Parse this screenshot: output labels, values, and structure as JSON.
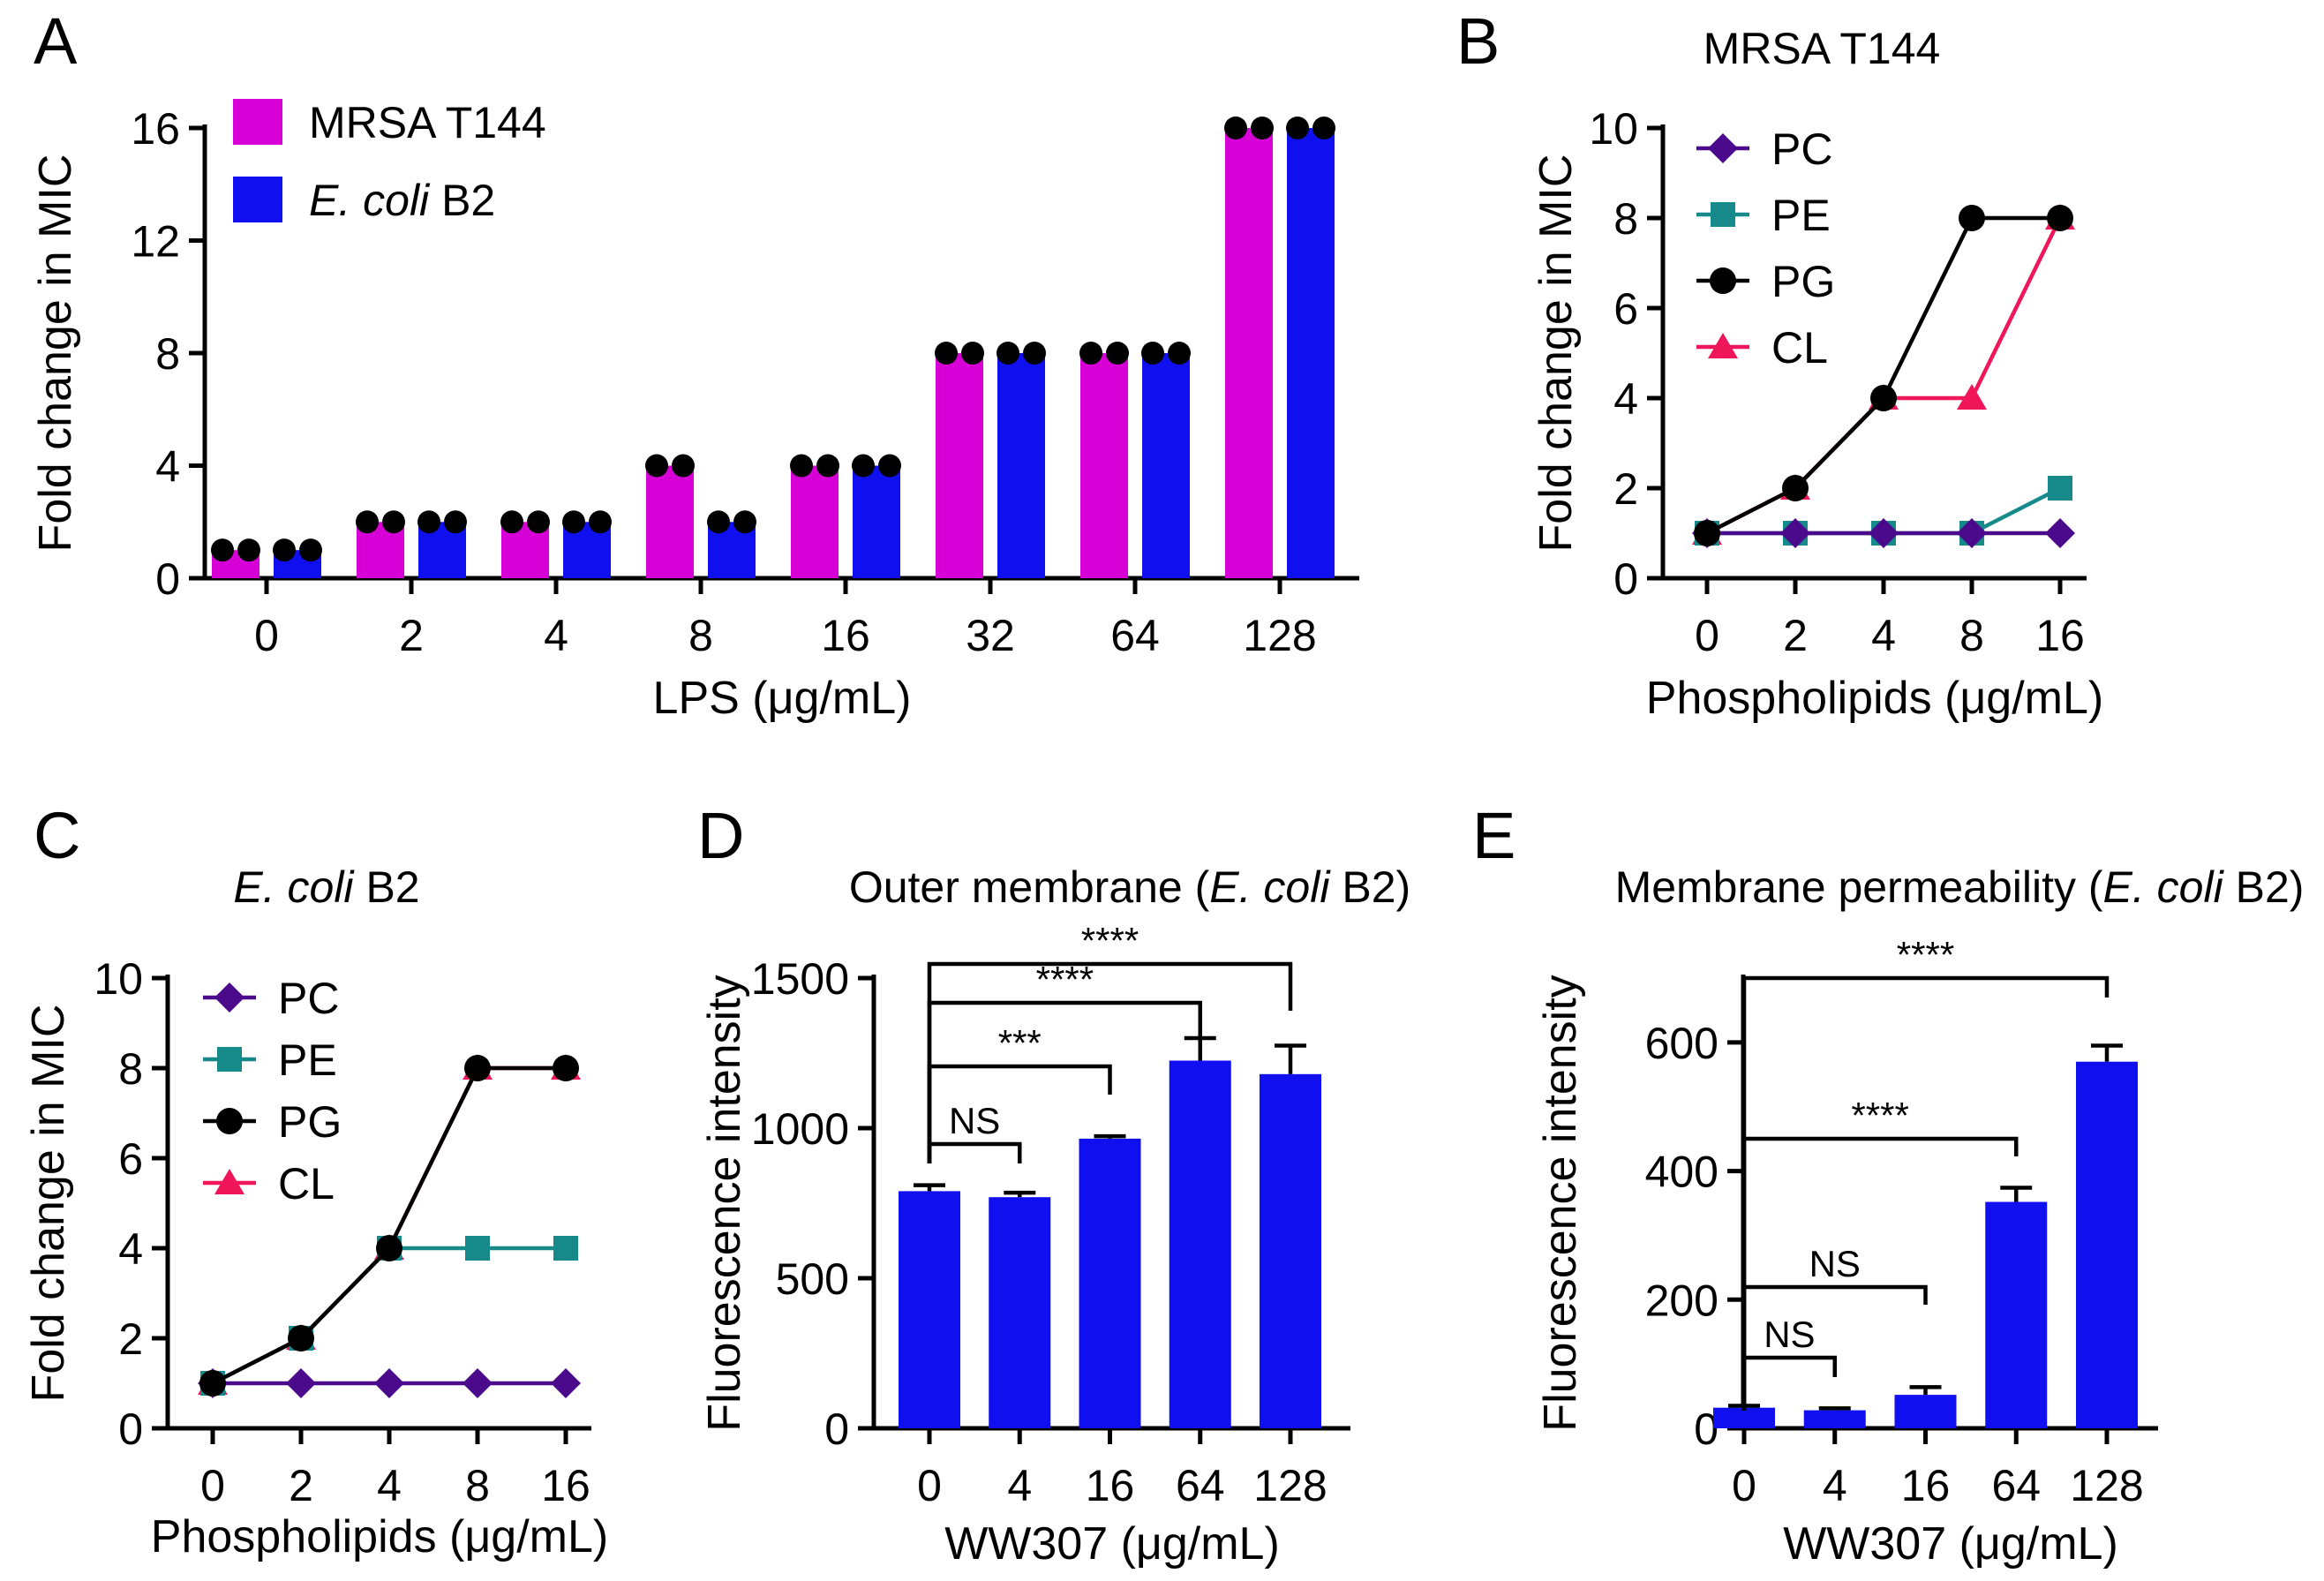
{
  "chart_data": [
    {
      "panel": "A",
      "type": "bar",
      "title": "",
      "xlabel": "LPS (μg/mL)",
      "ylabel": "Fold change in MIC",
      "categories": [
        "0",
        "2",
        "4",
        "8",
        "16",
        "32",
        "64",
        "128"
      ],
      "ylim": [
        0,
        16
      ],
      "yticks": [
        "0",
        "4",
        "8",
        "12",
        "16"
      ],
      "series": [
        {
          "name": "MRSA T144",
          "color": "#d600d6",
          "values": [
            1,
            2,
            2,
            4,
            4,
            8,
            8,
            16
          ]
        },
        {
          "name": "E. coli B2",
          "name_italic": "E. coli",
          "name_rest": " B2",
          "color": "#0f0fef",
          "values": [
            1,
            2,
            2,
            2,
            4,
            8,
            8,
            16
          ]
        }
      ],
      "replicates_per_bar": 2,
      "legend": "top-left"
    },
    {
      "panel": "B",
      "type": "line",
      "title": "MRSA T144",
      "xlabel": "Phospholipids (μg/mL)",
      "ylabel": "Fold change in MIC",
      "categories": [
        "0",
        "2",
        "4",
        "8",
        "16"
      ],
      "ylim": [
        0,
        10
      ],
      "yticks": [
        "0",
        "2",
        "4",
        "6",
        "8",
        "10"
      ],
      "series": [
        {
          "name": "PC",
          "marker": "diamond",
          "color": "#4b0a8c",
          "values": [
            1,
            1,
            1,
            1,
            1
          ]
        },
        {
          "name": "PE",
          "marker": "square",
          "color": "#16898a",
          "values": [
            1,
            1,
            1,
            1,
            2
          ]
        },
        {
          "name": "PG",
          "marker": "circle",
          "color": "#000000",
          "values": [
            1,
            2,
            4,
            8,
            8
          ]
        },
        {
          "name": "CL",
          "marker": "triangle",
          "color": "#f0165a",
          "values": [
            1,
            2,
            4,
            4,
            8
          ]
        }
      ],
      "legend": "top-left"
    },
    {
      "panel": "C",
      "type": "line",
      "title": "E. coli B2",
      "title_italic": "E. coli",
      "title_rest": " B2",
      "xlabel": "Phospholipids (μg/mL)",
      "ylabel": "Fold change in MIC",
      "categories": [
        "0",
        "2",
        "4",
        "8",
        "16"
      ],
      "ylim": [
        0,
        10
      ],
      "yticks": [
        "0",
        "2",
        "4",
        "6",
        "8",
        "10"
      ],
      "series": [
        {
          "name": "PC",
          "marker": "diamond",
          "color": "#4b0a8c",
          "values": [
            1,
            1,
            1,
            1,
            1
          ]
        },
        {
          "name": "PE",
          "marker": "square",
          "color": "#16898a",
          "values": [
            1,
            2,
            4,
            4,
            4
          ]
        },
        {
          "name": "PG",
          "marker": "circle",
          "color": "#000000",
          "values": [
            1,
            2,
            4,
            8,
            8
          ]
        },
        {
          "name": "CL",
          "marker": "triangle",
          "color": "#f0165a",
          "values": [
            1,
            2,
            4,
            8,
            8
          ]
        }
      ],
      "legend": "top-left"
    },
    {
      "panel": "D",
      "type": "bar",
      "title": "Outer membrane (E. coli B2)",
      "title_pre": "Outer membrane (",
      "title_italic": "E. coli",
      "title_rest": " B2)",
      "xlabel": "WW307 (μg/mL)",
      "ylabel": "Fluorescence intensity",
      "categories": [
        "0",
        "4",
        "16",
        "64",
        "128"
      ],
      "ylim": [
        0,
        1500
      ],
      "yticks": [
        "0",
        "500",
        "1000",
        "1500"
      ],
      "color": "#0f0fef",
      "values": [
        790,
        770,
        965,
        1225,
        1180
      ],
      "errors": [
        20,
        15,
        8,
        75,
        95
      ],
      "comparisons": [
        {
          "from": 0,
          "to": 1,
          "label": "NS"
        },
        {
          "from": 0,
          "to": 2,
          "label": "***"
        },
        {
          "from": 0,
          "to": 3,
          "label": "****"
        },
        {
          "from": 0,
          "to": 4,
          "label": "****"
        }
      ]
    },
    {
      "panel": "E",
      "type": "bar",
      "title": "Membrane permeability (E. coli B2)",
      "title_pre": "Membrane permeability (",
      "title_italic": "E. coli",
      "title_rest": " B2)",
      "xlabel": "WW307 (μg/mL)",
      "ylabel": "Fluorescence intensity",
      "categories": [
        "0",
        "4",
        "16",
        "64",
        "128"
      ],
      "ylim": [
        0,
        700
      ],
      "yticks": [
        "0",
        "200",
        "400",
        "600"
      ],
      "color": "#0f0fef",
      "values": [
        32,
        28,
        52,
        352,
        570
      ],
      "errors": [
        3,
        3,
        12,
        22,
        25
      ],
      "comparisons": [
        {
          "from": 0,
          "to": 1,
          "label": "NS"
        },
        {
          "from": 0,
          "to": 2,
          "label": "NS"
        },
        {
          "from": 0,
          "to": 3,
          "label": "****"
        },
        {
          "from": 0,
          "to": 4,
          "label": "****"
        }
      ]
    }
  ]
}
